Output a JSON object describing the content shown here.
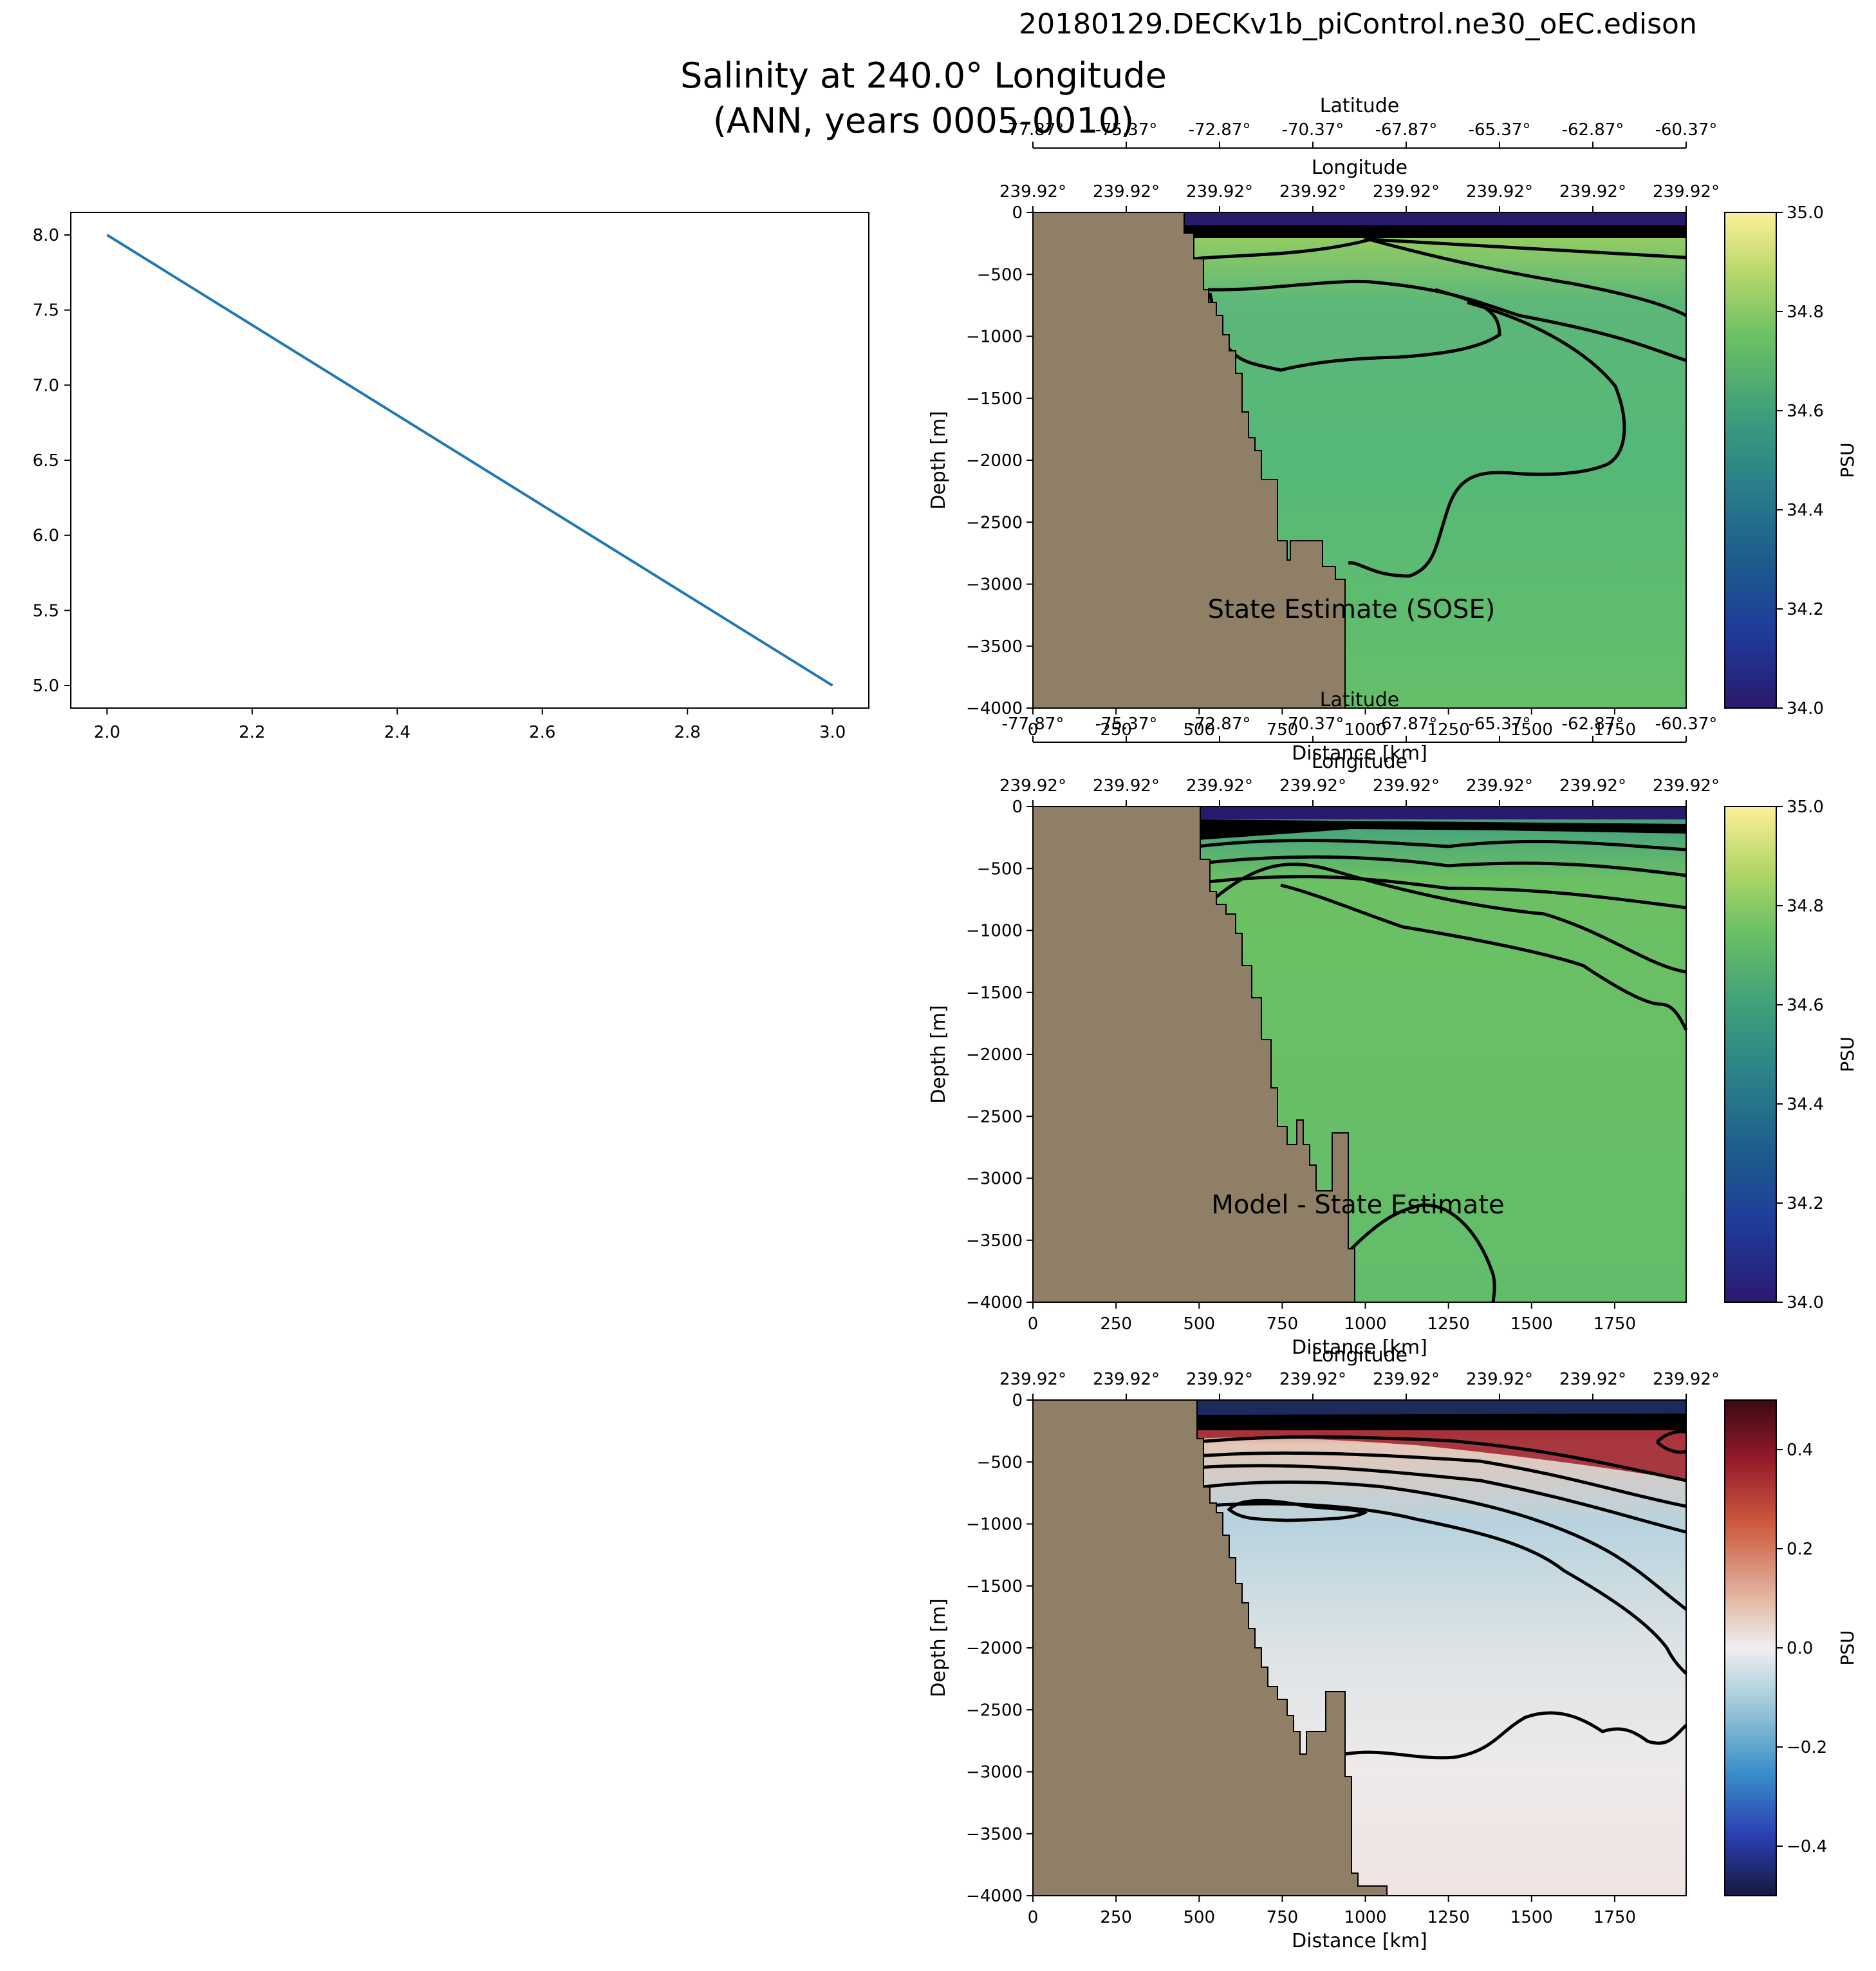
{
  "figure": {
    "run_title": "20180129.DECKv1b_piControl.ne30_oEC.edison",
    "main_title_line1": "Salinity at 240.0° Longitude",
    "main_title_line2": "(ANN, years 0005-0010)"
  },
  "colors": {
    "land": "#8e7f66",
    "line": "#1f77b4",
    "contour": "#000000"
  },
  "chart_data": [
    {
      "type": "line",
      "x": [
        2.0,
        3.0
      ],
      "y": [
        8.0,
        5.0
      ],
      "xlim": [
        1.95,
        3.05
      ],
      "ylim": [
        4.85,
        8.15
      ],
      "xticks": [
        "2.0",
        "2.2",
        "2.4",
        "2.6",
        "2.8",
        "3.0"
      ],
      "yticks": [
        "5.0",
        "5.5",
        "6.0",
        "6.5",
        "7.0",
        "7.5",
        "8.0"
      ]
    },
    {
      "type": "heatmap",
      "label": "State Estimate (SOSE)",
      "ylabel": "Depth [m]",
      "colorbar_label": "PSU",
      "colorbar_range": [
        34.0,
        35.0
      ],
      "colorbar_ticks": [
        "34.0",
        "34.2",
        "34.4",
        "34.6",
        "34.8",
        "35.0"
      ],
      "xlim": [
        0,
        1965
      ],
      "ylim": [
        -4000,
        0
      ],
      "yticks": [
        "0",
        "−500",
        "−1000",
        "−1500",
        "−2000",
        "−2500",
        "−3000",
        "−3500",
        "−4000"
      ],
      "distance_ticks": [
        "0",
        "250",
        "500",
        "750",
        "1000",
        "1250",
        "1500",
        "1750"
      ],
      "distance_label": "Distance [km]",
      "latitude_label": "Latitude",
      "latitude_ticks": [
        "-77.87°",
        "-75.37°",
        "-72.87°",
        "-70.37°",
        "-67.87°",
        "-65.37°",
        "-62.87°",
        "-60.37°"
      ],
      "longitude_label": "Longitude",
      "longitude_ticks": [
        "239.92°",
        "239.92°",
        "239.92°",
        "239.92°",
        "239.92°",
        "239.92°",
        "239.92°",
        "239.92°"
      ]
    },
    {
      "type": "heatmap",
      "label": "Model - State Estimate",
      "ylabel": "Depth [m]",
      "colorbar_label": "PSU",
      "colorbar_range": [
        34.0,
        35.0
      ],
      "colorbar_ticks": [
        "34.0",
        "34.2",
        "34.4",
        "34.6",
        "34.8",
        "35.0"
      ],
      "xlim": [
        0,
        1965
      ],
      "ylim": [
        -4000,
        0
      ],
      "yticks": [
        "0",
        "−500",
        "−1000",
        "−1500",
        "−2000",
        "−2500",
        "−3000",
        "−3500",
        "−4000"
      ],
      "distance_ticks": [
        "0",
        "250",
        "500",
        "750",
        "1000",
        "1250",
        "1500",
        "1750"
      ],
      "distance_label": "Distance [km]",
      "latitude_label": "Latitude",
      "latitude_ticks": [
        "-77.87°",
        "-75.37°",
        "-72.87°",
        "-70.37°",
        "-67.87°",
        "-65.37°",
        "-62.87°",
        "-60.37°"
      ],
      "longitude_label": "Longitude",
      "longitude_ticks": [
        "239.92°",
        "239.92°",
        "239.92°",
        "239.92°",
        "239.92°",
        "239.92°",
        "239.92°",
        "239.92°"
      ]
    },
    {
      "type": "heatmap",
      "ylabel": "Depth [m]",
      "colorbar_label": "PSU",
      "colorbar_range": [
        -0.5,
        0.5
      ],
      "colorbar_ticks": [
        "−0.4",
        "−0.2",
        "0.0",
        "0.2",
        "0.4"
      ],
      "xlim": [
        0,
        1965
      ],
      "ylim": [
        -4000,
        0
      ],
      "yticks": [
        "0",
        "−500",
        "−1000",
        "−1500",
        "−2000",
        "−2500",
        "−3000",
        "−3500",
        "−4000"
      ],
      "distance_ticks": [
        "0",
        "250",
        "500",
        "750",
        "1000",
        "1250",
        "1500",
        "1750"
      ],
      "distance_label": "Distance [km]",
      "longitude_label": "Longitude",
      "longitude_ticks": [
        "239.92°",
        "239.92°",
        "239.92°",
        "239.92°",
        "239.92°",
        "239.92°",
        "239.92°",
        "239.92°"
      ]
    }
  ]
}
